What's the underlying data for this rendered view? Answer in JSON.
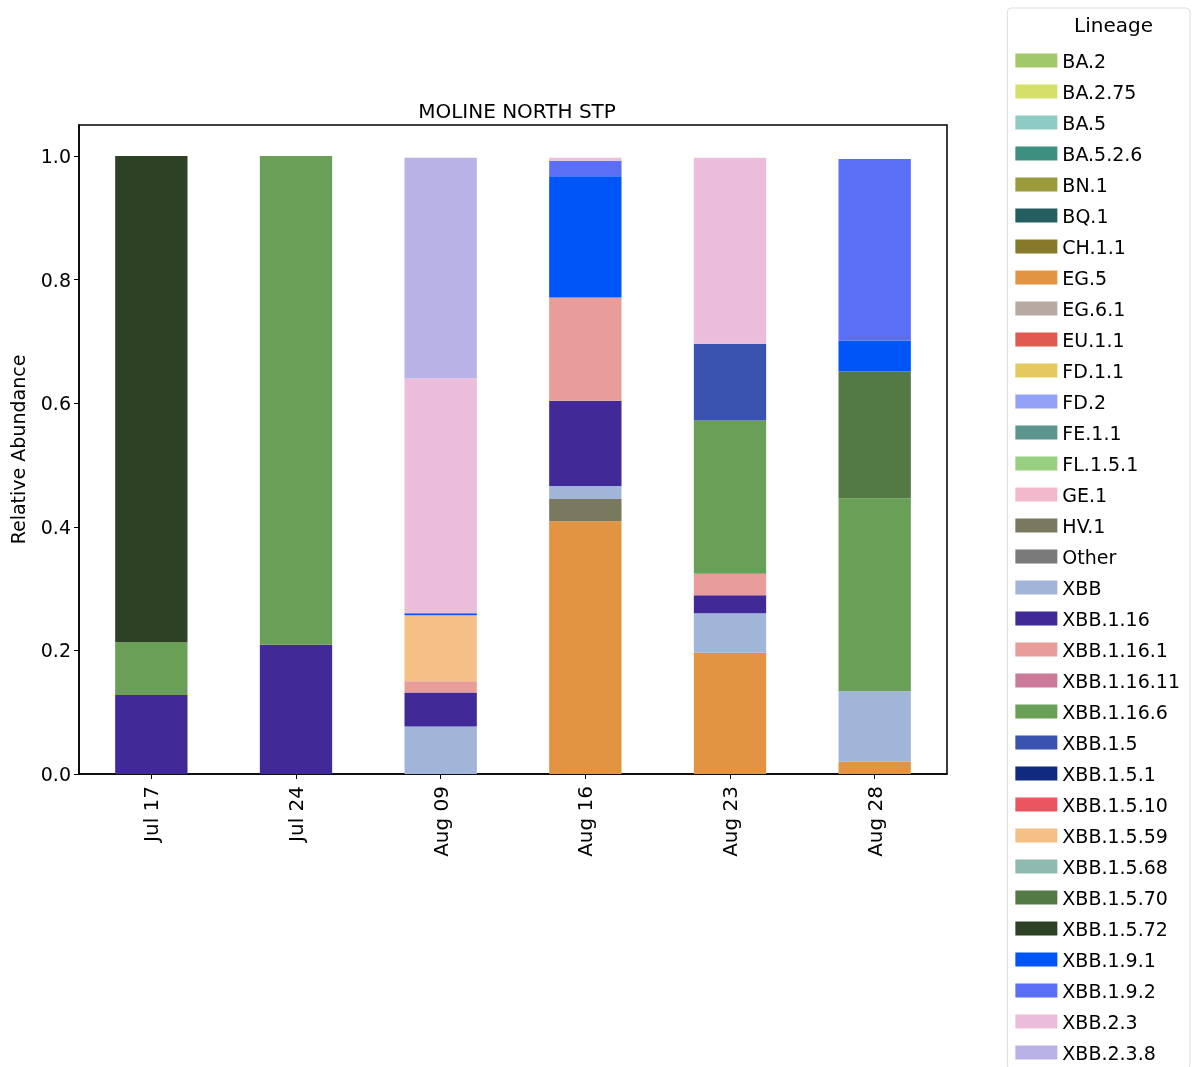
{
  "chart_data": {
    "type": "bar",
    "title": "MOLINE NORTH STP",
    "ylabel": "Relative Abundance",
    "legend_title": "Lineage",
    "legend": "right",
    "stacked": true,
    "grid": false,
    "categories": [
      "Jul 17",
      "Jul 24",
      "Aug 09",
      "Aug 16",
      "Aug 23",
      "Aug 28"
    ],
    "ylim": [
      0,
      1.05
    ],
    "yticks": [
      {
        "value": 0,
        "label": "0.0"
      },
      {
        "value": 0.2,
        "label": "0.2"
      },
      {
        "value": 0.4,
        "label": "0.4"
      },
      {
        "value": 0.6,
        "label": "0.6"
      },
      {
        "value": 0.8,
        "label": "0.8"
      },
      {
        "value": 1,
        "label": "1.0"
      }
    ],
    "series": [
      {
        "name": "BA.2",
        "color": "#a1c96a",
        "values": [
          null,
          null,
          null,
          null,
          null,
          null
        ]
      },
      {
        "name": "BA.2.75",
        "color": "#d4e06a",
        "values": [
          null,
          null,
          null,
          null,
          null,
          null
        ]
      },
      {
        "name": "BA.5",
        "color": "#8ecbc4",
        "values": [
          null,
          null,
          null,
          null,
          null,
          null
        ]
      },
      {
        "name": "BA.5.2.6",
        "color": "#3d8f7f",
        "values": [
          null,
          null,
          null,
          null,
          null,
          null
        ]
      },
      {
        "name": "BN.1",
        "color": "#9a9a3a",
        "values": [
          null,
          null,
          null,
          null,
          null,
          null
        ]
      },
      {
        "name": "BQ.1",
        "color": "#255e5e",
        "values": [
          null,
          null,
          null,
          null,
          null,
          null
        ]
      },
      {
        "name": "CH.1.1",
        "color": "#857a2a",
        "values": [
          null,
          null,
          null,
          null,
          null,
          null
        ]
      },
      {
        "name": "EG.5",
        "color": "#e39443",
        "values": [
          null,
          null,
          null,
          0.409,
          0.196,
          0.02
        ]
      },
      {
        "name": "EG.6.1",
        "color": "#b7aaa2",
        "values": [
          null,
          null,
          null,
          null,
          null,
          null
        ]
      },
      {
        "name": "EU.1.1",
        "color": "#e05a50",
        "values": [
          null,
          null,
          null,
          null,
          null,
          null
        ]
      },
      {
        "name": "FD.1.1",
        "color": "#e3c95e",
        "values": [
          null,
          null,
          null,
          null,
          null,
          null
        ]
      },
      {
        "name": "FD.2",
        "color": "#93a1f7",
        "values": [
          null,
          null,
          null,
          null,
          null,
          null
        ]
      },
      {
        "name": "FE.1.1",
        "color": "#5c958e",
        "values": [
          null,
          null,
          null,
          null,
          null,
          null
        ]
      },
      {
        "name": "FL.1.5.1",
        "color": "#98cf80",
        "values": [
          null,
          null,
          null,
          null,
          null,
          null
        ]
      },
      {
        "name": "GE.1",
        "color": "#f1b9cb",
        "values": [
          null,
          null,
          null,
          null,
          null,
          null
        ]
      },
      {
        "name": "HV.1",
        "color": "#79795f",
        "values": [
          null,
          null,
          null,
          0.036,
          null,
          null
        ]
      },
      {
        "name": "Other",
        "color": "#7a7a7a",
        "values": [
          null,
          null,
          null,
          null,
          null,
          null
        ]
      },
      {
        "name": "XBB",
        "color": "#a1b5d8",
        "values": [
          null,
          null,
          0.077,
          0.021,
          0.064,
          0.114
        ]
      },
      {
        "name": "XBB.1.16",
        "color": "#412997",
        "values": [
          0.128,
          0.209,
          0.055,
          0.138,
          0.029,
          null
        ]
      },
      {
        "name": "XBB.1.16.1",
        "color": "#e99d9b",
        "values": [
          null,
          null,
          0.018,
          0.167,
          0.035,
          null
        ]
      },
      {
        "name": "XBB.1.16.11",
        "color": "#cc7a99",
        "values": [
          null,
          null,
          null,
          null,
          null,
          null
        ]
      },
      {
        "name": "XBB.1.16.6",
        "color": "#6a9f57",
        "values": [
          0.085,
          0.791,
          null,
          null,
          0.248,
          0.312
        ]
      },
      {
        "name": "XBB.1.5",
        "color": "#3a52b0",
        "values": [
          null,
          null,
          null,
          null,
          0.124,
          null
        ]
      },
      {
        "name": "XBB.1.5.1",
        "color": "#102a80",
        "values": [
          null,
          null,
          null,
          null,
          null,
          null
        ]
      },
      {
        "name": "XBB.1.5.10",
        "color": "#ea5560",
        "values": [
          null,
          null,
          null,
          null,
          null,
          null
        ]
      },
      {
        "name": "XBB.1.5.59",
        "color": "#f5c085",
        "values": [
          null,
          null,
          0.107,
          null,
          null,
          null
        ]
      },
      {
        "name": "XBB.1.5.68",
        "color": "#8fbab0",
        "values": [
          null,
          null,
          null,
          null,
          null,
          null
        ]
      },
      {
        "name": "XBB.1.5.70",
        "color": "#537a45",
        "values": [
          null,
          null,
          null,
          null,
          null,
          0.205
        ]
      },
      {
        "name": "XBB.1.5.72",
        "color": "#2d4125",
        "values": [
          0.787,
          null,
          null,
          null,
          null,
          null
        ]
      },
      {
        "name": "XBB.1.9.1",
        "color": "#0055f9",
        "values": [
          null,
          null,
          0.003,
          0.196,
          null,
          0.05
        ]
      },
      {
        "name": "XBB.1.9.2",
        "color": "#5a6ff5",
        "values": [
          null,
          null,
          null,
          0.025,
          null,
          0.294
        ]
      },
      {
        "name": "XBB.2.3",
        "color": "#ebbddb",
        "values": [
          null,
          null,
          0.38,
          0.005,
          0.301,
          null
        ]
      },
      {
        "name": "XBB.2.3.8",
        "color": "#b8b2e6",
        "values": [
          null,
          null,
          0.357,
          null,
          null,
          null
        ]
      }
    ]
  }
}
